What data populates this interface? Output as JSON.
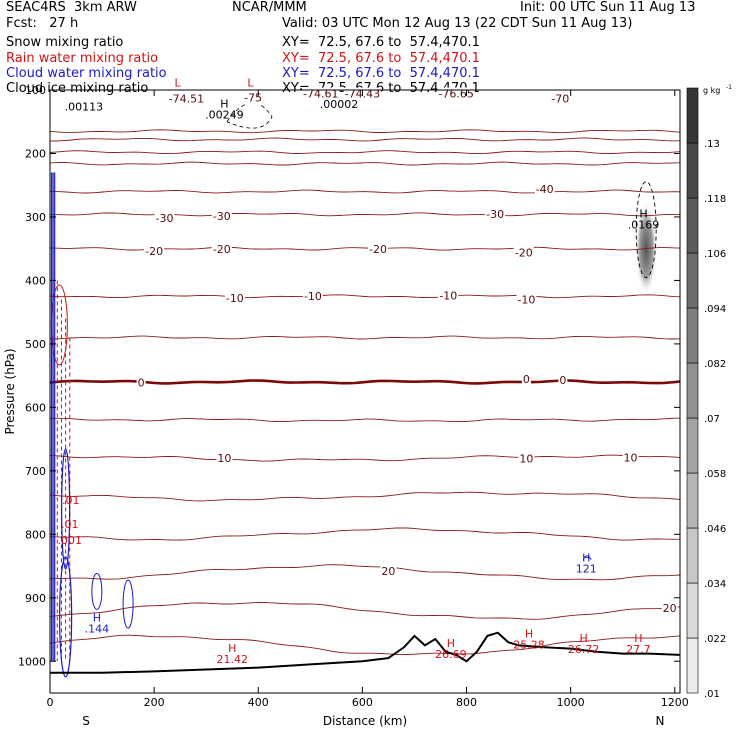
{
  "header": {
    "model": "SEAC4RS  3km ARW",
    "org": "NCAR/MMM",
    "init": "Init: 00 UTC Sun 11 Aug 13",
    "fcst": "Fcst:   27 h",
    "valid": "Valid: 03 UTC Mon 12 Aug 13 (22 CDT Sun 11 Aug 13)",
    "fields": [
      {
        "name": "Snow mixing ratio",
        "xy": "XY=  72.5, 67.6 to  57.4,470.1",
        "color": "#000000"
      },
      {
        "name": "Rain water mixing ratio",
        "xy": "XY=  72.5, 67.6 to  57.4,470.1",
        "color": "#d21414"
      },
      {
        "name": "Cloud water mixing ratio",
        "xy": "XY=  72.5, 67.6 to  57.4,470.1",
        "color": "#1a1acc"
      },
      {
        "name": "Cloud ice mixing ratio",
        "xy": "XY=  72.5, 67.6 to  57.4,470.1",
        "color": "#000000"
      }
    ]
  },
  "chart_data": {
    "type": "contour cross-section",
    "xlabel": "Distance (km)",
    "ylabel": "Pressure (hPa)",
    "xlim": [
      0,
      1210
    ],
    "ylim": [
      100,
      1050
    ],
    "x_ticks": [
      0,
      200,
      400,
      600,
      800,
      1000,
      1200
    ],
    "y_ticks": [
      100,
      200,
      300,
      400,
      500,
      600,
      700,
      800,
      900,
      1000
    ],
    "end_labels": {
      "left": "S",
      "right": "N"
    },
    "temperature_contours": [
      {
        "label": "-70",
        "pressure": 165
      },
      {
        "label": "",
        "pressure": 178
      },
      {
        "label": "",
        "pressure": 198
      },
      {
        "label": "",
        "pressure": 216
      },
      {
        "label": "-40",
        "pressure": 260
      },
      {
        "label": "-30",
        "pressure": 296
      },
      {
        "label": "-20",
        "pressure": 350
      },
      {
        "label": "-10",
        "pressure": 425
      },
      {
        "label": "",
        "pressure": 490
      },
      {
        "label": "0",
        "pressure": 560
      },
      {
        "label": "",
        "pressure": 620
      },
      {
        "label": "10",
        "pressure": 680
      },
      {
        "label": "",
        "pressure": 740
      },
      {
        "label": "",
        "pressure": 800
      },
      {
        "label": "20",
        "pressure": 860
      },
      {
        "label": "",
        "pressure": 920
      },
      {
        "label": "",
        "pressure": 975
      }
    ],
    "contour_labels": [
      {
        "text": "-74.51",
        "x": 262,
        "p": 120
      },
      {
        "text": "-75",
        "x": 390,
        "p": 118
      },
      {
        "text": "-74.61",
        "x": 520,
        "p": 112
      },
      {
        "text": "-74.43",
        "x": 600,
        "p": 112
      },
      {
        "text": "-76.65",
        "x": 780,
        "p": 112
      },
      {
        "text": "-70",
        "x": 980,
        "p": 120
      },
      {
        "text": "-40",
        "x": 950,
        "p": 262
      },
      {
        "text": "-30",
        "x": 220,
        "p": 308
      },
      {
        "text": "-30",
        "x": 330,
        "p": 305
      },
      {
        "text": "-30",
        "x": 855,
        "p": 302
      },
      {
        "text": "-20",
        "x": 200,
        "p": 360
      },
      {
        "text": "-20",
        "x": 330,
        "p": 357
      },
      {
        "text": "-20",
        "x": 630,
        "p": 357
      },
      {
        "text": "-20",
        "x": 910,
        "p": 362
      },
      {
        "text": "-10",
        "x": 355,
        "p": 434
      },
      {
        "text": "-10",
        "x": 505,
        "p": 431
      },
      {
        "text": "-10",
        "x": 765,
        "p": 430
      },
      {
        "text": "-10",
        "x": 915,
        "p": 436
      },
      {
        "text": "0",
        "x": 175,
        "p": 567
      },
      {
        "text": "0",
        "x": 915,
        "p": 562
      },
      {
        "text": "0",
        "x": 985,
        "p": 563
      },
      {
        "text": "10",
        "x": 335,
        "p": 686
      },
      {
        "text": "10",
        "x": 915,
        "p": 687
      },
      {
        "text": "10",
        "x": 1115,
        "p": 685
      },
      {
        "text": "20",
        "x": 650,
        "p": 864
      },
      {
        "text": "20",
        "x": 1190,
        "p": 922
      }
    ],
    "extrema": [
      {
        "kind": "L",
        "text": "",
        "x": 245,
        "p": 112,
        "color": "#d21414"
      },
      {
        "kind": "L",
        "text": "",
        "x": 385,
        "p": 112,
        "color": "#d21414"
      },
      {
        "kind": "H",
        "text": ".00249",
        "x": 335,
        "p": 145,
        "color": "#000000"
      },
      {
        "kind": "",
        "text": ".00113",
        "x": 65,
        "p": 132,
        "color": "#000000"
      },
      {
        "kind": "",
        "text": ".00002",
        "x": 555,
        "p": 128,
        "color": "#000000"
      },
      {
        "kind": "H",
        "text": ".0169",
        "x": 1140,
        "p": 318,
        "color": "#000000"
      },
      {
        "kind": "H",
        "text": "121",
        "x": 1030,
        "p": 860,
        "color": "#1a1acc"
      },
      {
        "kind": "H",
        "text": ".144",
        "x": 90,
        "p": 955,
        "color": "#1a1acc"
      },
      {
        "kind": "H",
        "text": "21.42",
        "x": 350,
        "p": 1003,
        "color": "#d21414"
      },
      {
        "kind": "H",
        "text": "26.69",
        "x": 770,
        "p": 995,
        "color": "#d21414"
      },
      {
        "kind": "H",
        "text": "25.28",
        "x": 920,
        "p": 980,
        "color": "#d21414"
      },
      {
        "kind": "H",
        "text": "26.72",
        "x": 1025,
        "p": 987,
        "color": "#d21414"
      },
      {
        "kind": "H",
        "text": "27.7",
        "x": 1130,
        "p": 987,
        "color": "#d21414"
      },
      {
        "kind": "",
        "text": ".01",
        "x": 40,
        "p": 752,
        "color": "#d21414"
      },
      {
        "kind": "",
        "text": ".01",
        "x": 38,
        "p": 790,
        "color": "#d21414"
      },
      {
        "kind": "",
        "text": ".001",
        "x": 38,
        "p": 815,
        "color": "#d21414"
      }
    ],
    "colorbar": {
      "unit": "g kg",
      "unit_exp": "-1",
      "levels": [
        ".01",
        ".022",
        ".034",
        ".046",
        ".058",
        ".07",
        ".082",
        ".094",
        ".106",
        ".118",
        ".13"
      ]
    }
  }
}
